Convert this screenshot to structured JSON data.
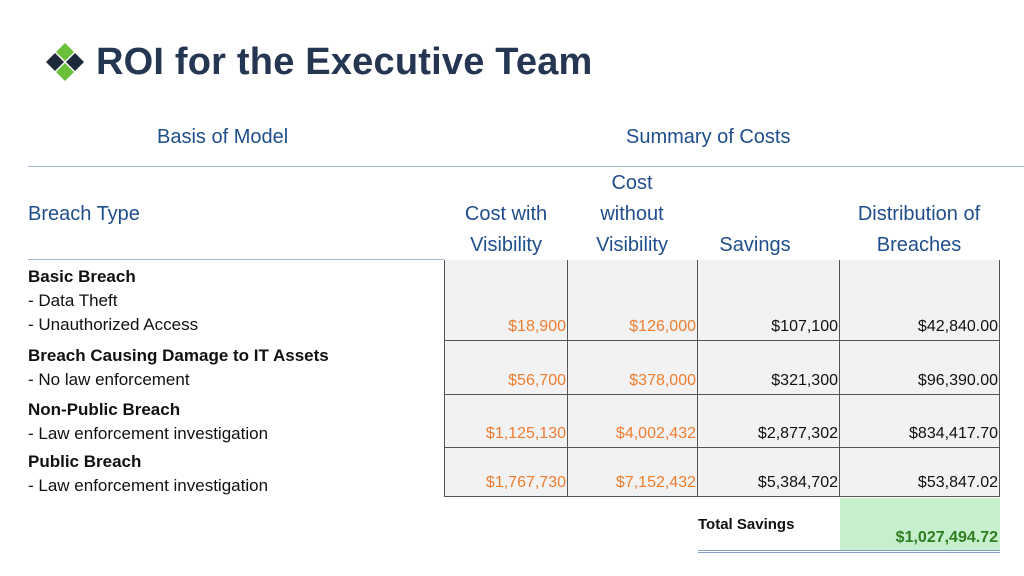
{
  "title": "ROI for the Executive Team",
  "sections": {
    "basis": "Basis of Model",
    "summary": "Summary of Costs"
  },
  "columns": {
    "breach_type": "Breach Type",
    "cost_with": [
      "Cost with",
      "Visibility"
    ],
    "cost_without": [
      "Cost",
      "without",
      "Visibility"
    ],
    "savings": "Savings",
    "distribution": [
      "Distribution of",
      "Breaches"
    ]
  },
  "rows": [
    {
      "name": "Basic Breach",
      "details": [
        "- Data Theft",
        "- Unauthorized Access"
      ],
      "cost_with": "$18,900",
      "cost_without": "$126,000",
      "savings": "$107,100",
      "distribution": "$42,840.00"
    },
    {
      "name": "Breach Causing Damage to IT Assets",
      "details": [
        "- No law enforcement"
      ],
      "cost_with": "$56,700",
      "cost_without": "$378,000",
      "savings": "$321,300",
      "distribution": "$96,390.00"
    },
    {
      "name": "Non-Public Breach",
      "details": [
        "- Law enforcement investigation"
      ],
      "cost_with": "$1,125,130",
      "cost_without": "$4,002,432",
      "savings": "$2,877,302",
      "distribution": "$834,417.70"
    },
    {
      "name": "Public Breach",
      "details": [
        "- Law enforcement investigation"
      ],
      "cost_with": "$1,767,730",
      "cost_without": "$7,152,432",
      "savings": "$5,384,702",
      "distribution": "$53,847.02"
    }
  ],
  "total": {
    "label": "Total Savings",
    "value": "$1,027,494.72"
  },
  "colors": {
    "title": "#243652",
    "header": "#1f4e8c",
    "orange": "#ed7d31",
    "green_fill": "#c6efce",
    "green_text": "#2e7d1e",
    "logo_dark": "#1c2a3a",
    "logo_green": "#6abf3b"
  }
}
